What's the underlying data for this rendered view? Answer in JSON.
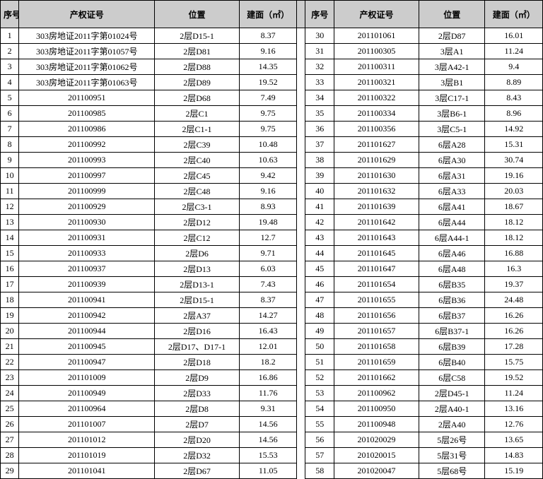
{
  "headers": {
    "seq": "序号",
    "cert": "产权证号",
    "loc": "位置",
    "area": "建面（㎡）"
  },
  "rows": [
    {
      "l": {
        "seq": "1",
        "cert": "303房地证2011字第01024号",
        "loc": "2层D15-1",
        "area": "8.37"
      },
      "r": {
        "seq": "30",
        "cert": "201101061",
        "loc": "2层D87",
        "area": "16.01"
      }
    },
    {
      "l": {
        "seq": "2",
        "cert": "303房地证2011字第01057号",
        "loc": "2层D81",
        "area": "9.16"
      },
      "r": {
        "seq": "31",
        "cert": "201100305",
        "loc": "3层A1",
        "area": "11.24"
      }
    },
    {
      "l": {
        "seq": "3",
        "cert": "303房地证2011字第01062号",
        "loc": "2层D88",
        "area": "14.35"
      },
      "r": {
        "seq": "32",
        "cert": "201100311",
        "loc": "3层A42-1",
        "area": "9.4"
      }
    },
    {
      "l": {
        "seq": "4",
        "cert": "303房地证2011字第01063号",
        "loc": "2层D89",
        "area": "19.52"
      },
      "r": {
        "seq": "33",
        "cert": "201100321",
        "loc": "3层B1",
        "area": "8.89"
      }
    },
    {
      "l": {
        "seq": "5",
        "cert": "201100951",
        "loc": "2层D68",
        "area": "7.49"
      },
      "r": {
        "seq": "34",
        "cert": "201100322",
        "loc": "3层C17-1",
        "area": "8.43"
      }
    },
    {
      "l": {
        "seq": "6",
        "cert": "201100985",
        "loc": "2层C1",
        "area": "9.75"
      },
      "r": {
        "seq": "35",
        "cert": "201100334",
        "loc": "3层B6-1",
        "area": "8.96"
      }
    },
    {
      "l": {
        "seq": "7",
        "cert": "201100986",
        "loc": "2层C1-1",
        "area": "9.75"
      },
      "r": {
        "seq": "36",
        "cert": "201100356",
        "loc": "3层C5-1",
        "area": "14.92"
      }
    },
    {
      "l": {
        "seq": "8",
        "cert": "201100992",
        "loc": "2层C39",
        "area": "10.48"
      },
      "r": {
        "seq": "37",
        "cert": "201101627",
        "loc": "6层A28",
        "area": "15.31"
      }
    },
    {
      "l": {
        "seq": "9",
        "cert": "201100993",
        "loc": "2层C40",
        "area": "10.63"
      },
      "r": {
        "seq": "38",
        "cert": "201101629",
        "loc": "6层A30",
        "area": "30.74"
      }
    },
    {
      "l": {
        "seq": "10",
        "cert": "201100997",
        "loc": "2层C45",
        "area": "9.42"
      },
      "r": {
        "seq": "39",
        "cert": "201101630",
        "loc": "6层A31",
        "area": "19.16"
      }
    },
    {
      "l": {
        "seq": "11",
        "cert": "201100999",
        "loc": "2层C48",
        "area": "9.16"
      },
      "r": {
        "seq": "40",
        "cert": "201101632",
        "loc": "6层A33",
        "area": "20.03"
      }
    },
    {
      "l": {
        "seq": "12",
        "cert": "201100929",
        "loc": "2层C3-1",
        "area": "8.93"
      },
      "r": {
        "seq": "41",
        "cert": "201101639",
        "loc": "6层A41",
        "area": "18.67"
      }
    },
    {
      "l": {
        "seq": "13",
        "cert": "201100930",
        "loc": "2层D12",
        "area": "19.48"
      },
      "r": {
        "seq": "42",
        "cert": "201101642",
        "loc": "6层A44",
        "area": "18.12"
      }
    },
    {
      "l": {
        "seq": "14",
        "cert": "201100931",
        "loc": "2层C12",
        "area": "12.7"
      },
      "r": {
        "seq": "43",
        "cert": "201101643",
        "loc": "6层A44-1",
        "area": "18.12"
      }
    },
    {
      "l": {
        "seq": "15",
        "cert": "201100933",
        "loc": "2层D6",
        "area": "9.71"
      },
      "r": {
        "seq": "44",
        "cert": "201101645",
        "loc": "6层A46",
        "area": "16.88"
      }
    },
    {
      "l": {
        "seq": "16",
        "cert": "201100937",
        "loc": "2层D13",
        "area": "6.03"
      },
      "r": {
        "seq": "45",
        "cert": "201101647",
        "loc": "6层A48",
        "area": "16.3"
      }
    },
    {
      "l": {
        "seq": "17",
        "cert": "201100939",
        "loc": "2层D13-1",
        "area": "7.43"
      },
      "r": {
        "seq": "46",
        "cert": "201101654",
        "loc": "6层B35",
        "area": "19.37"
      }
    },
    {
      "l": {
        "seq": "18",
        "cert": "201100941",
        "loc": "2层D15-1",
        "area": "8.37"
      },
      "r": {
        "seq": "47",
        "cert": "201101655",
        "loc": "6层B36",
        "area": "24.48"
      }
    },
    {
      "l": {
        "seq": "19",
        "cert": "201100942",
        "loc": "2层A37",
        "area": "14.27"
      },
      "r": {
        "seq": "48",
        "cert": "201101656",
        "loc": "6层B37",
        "area": "16.26"
      }
    },
    {
      "l": {
        "seq": "20",
        "cert": "201100944",
        "loc": "2层D16",
        "area": "16.43"
      },
      "r": {
        "seq": "49",
        "cert": "201101657",
        "loc": "6层B37-1",
        "area": "16.26"
      }
    },
    {
      "l": {
        "seq": "21",
        "cert": "201100945",
        "loc": "2层D17、D17-1",
        "area": "12.01"
      },
      "r": {
        "seq": "50",
        "cert": "201101658",
        "loc": "6层B39",
        "area": "17.28"
      }
    },
    {
      "l": {
        "seq": "22",
        "cert": "201100947",
        "loc": "2层D18",
        "area": "18.2"
      },
      "r": {
        "seq": "51",
        "cert": "201101659",
        "loc": "6层B40",
        "area": "15.75"
      }
    },
    {
      "l": {
        "seq": "23",
        "cert": "201101009",
        "loc": "2层D9",
        "area": "16.86"
      },
      "r": {
        "seq": "52",
        "cert": "201101662",
        "loc": "6层C58",
        "area": "19.52"
      }
    },
    {
      "l": {
        "seq": "24",
        "cert": "201100949",
        "loc": "2层D33",
        "area": "11.76"
      },
      "r": {
        "seq": "53",
        "cert": "201100962",
        "loc": "2层D45-1",
        "area": "11.24"
      }
    },
    {
      "l": {
        "seq": "25",
        "cert": "201100964",
        "loc": "2层D8",
        "area": "9.31"
      },
      "r": {
        "seq": "54",
        "cert": "201100950",
        "loc": "2层A40-1",
        "area": "13.16"
      }
    },
    {
      "l": {
        "seq": "26",
        "cert": "201101007",
        "loc": "2层D7",
        "area": "14.56"
      },
      "r": {
        "seq": "55",
        "cert": "201100948",
        "loc": "2层A40",
        "area": "12.76"
      }
    },
    {
      "l": {
        "seq": "27",
        "cert": "201101012",
        "loc": "2层D20",
        "area": "14.56"
      },
      "r": {
        "seq": "56",
        "cert": "201020029",
        "loc": "5层26号",
        "area": "13.65"
      }
    },
    {
      "l": {
        "seq": "28",
        "cert": "201101019",
        "loc": "2层D32",
        "area": "15.53"
      },
      "r": {
        "seq": "57",
        "cert": "201020015",
        "loc": "5层31号",
        "area": "14.83"
      }
    },
    {
      "l": {
        "seq": "29",
        "cert": "201101041",
        "loc": "2层D67",
        "area": "11.05"
      },
      "r": {
        "seq": "58",
        "cert": "201020047",
        "loc": "5层68号",
        "area": "15.19"
      }
    }
  ]
}
